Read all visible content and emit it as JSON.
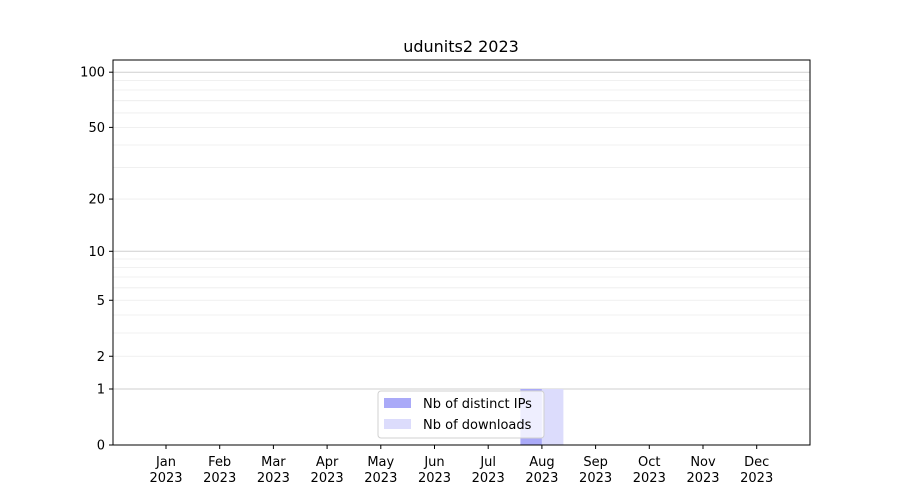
{
  "chart_data": {
    "type": "bar",
    "title": "udunits2 2023",
    "xlabel": "",
    "ylabel": "",
    "yscale": "symlog (log of 1+value)",
    "ylim": [
      0,
      116
    ],
    "yticks": [
      "0",
      "1",
      "2",
      "5",
      "10",
      "20",
      "50",
      "100"
    ],
    "ytick_values": [
      0,
      1,
      2,
      5,
      10,
      20,
      50,
      100
    ],
    "grid": true,
    "categories": [
      [
        "Jan",
        "2023"
      ],
      [
        "Feb",
        "2023"
      ],
      [
        "Mar",
        "2023"
      ],
      [
        "Apr",
        "2023"
      ],
      [
        "May",
        "2023"
      ],
      [
        "Jun",
        "2023"
      ],
      [
        "Jul",
        "2023"
      ],
      [
        "Aug",
        "2023"
      ],
      [
        "Sep",
        "2023"
      ],
      [
        "Oct",
        "2023"
      ],
      [
        "Nov",
        "2023"
      ],
      [
        "Dec",
        "2023"
      ]
    ],
    "series": [
      {
        "name": "Nb of distinct IPs",
        "color": "#aaaaf8",
        "values": [
          0,
          0,
          0,
          0,
          0,
          0,
          0,
          1,
          0,
          0,
          0,
          0
        ]
      },
      {
        "name": "Nb of downloads",
        "color": "#dcdcfc",
        "values": [
          0,
          0,
          0,
          0,
          0,
          0,
          0,
          1,
          0,
          0,
          0,
          0
        ]
      }
    ],
    "legend_position": "bottom-center"
  }
}
